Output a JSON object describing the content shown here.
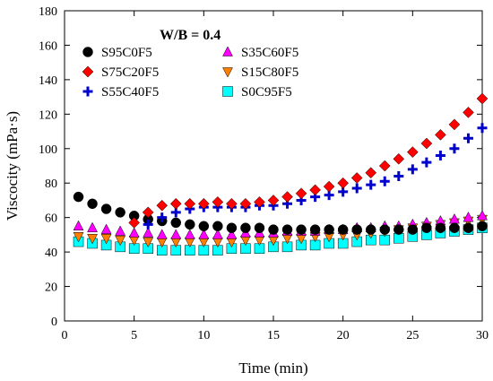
{
  "chart_data": {
    "type": "scatter",
    "title": "",
    "annotation": "W/B = 0.4",
    "xlabel": "Time (min)",
    "ylabel": "Viscocity (mPa·s)",
    "xlim": [
      0,
      30
    ],
    "ylim": [
      0,
      180
    ],
    "xticks": [
      0,
      5,
      10,
      15,
      20,
      25,
      30
    ],
    "yticks": [
      0,
      20,
      40,
      60,
      80,
      100,
      120,
      140,
      160,
      180
    ],
    "grid": false,
    "legend_placement": "top-left",
    "x": [
      1,
      2,
      3,
      4,
      5,
      6,
      7,
      8,
      9,
      10,
      11,
      12,
      13,
      14,
      15,
      16,
      17,
      18,
      19,
      20,
      21,
      22,
      23,
      24,
      25,
      26,
      27,
      28,
      29,
      30
    ],
    "series": [
      {
        "name": "S95C0F5",
        "marker": "circle",
        "color": "#000000",
        "values": [
          72,
          68,
          65,
          63,
          61,
          59,
          58,
          57,
          56,
          55,
          55,
          54,
          54,
          54,
          53,
          53,
          53,
          53,
          53,
          53,
          53,
          53,
          53,
          53,
          53,
          54,
          54,
          54,
          54,
          55
        ]
      },
      {
        "name": "S75C20F5",
        "marker": "diamond",
        "color": "#ff0000",
        "values": [
          null,
          null,
          null,
          null,
          57,
          63,
          67,
          68,
          68,
          68,
          69,
          68,
          68,
          69,
          70,
          72,
          74,
          76,
          78,
          80,
          83,
          86,
          90,
          94,
          98,
          103,
          108,
          114,
          121,
          129
        ]
      },
      {
        "name": "S55C40F5",
        "marker": "plus",
        "color": "#0000cc",
        "values": [
          null,
          null,
          null,
          null,
          null,
          56,
          60,
          63,
          65,
          66,
          66,
          66,
          66,
          67,
          67,
          68,
          70,
          72,
          73,
          75,
          77,
          79,
          81,
          84,
          88,
          92,
          96,
          100,
          106,
          112
        ]
      },
      {
        "name": "S35C60F5",
        "marker": "triangle-up",
        "color": "#ff00ff",
        "values": [
          55,
          54,
          53,
          52,
          51,
          51,
          50,
          50,
          50,
          50,
          50,
          50,
          51,
          51,
          51,
          52,
          52,
          52,
          53,
          53,
          54,
          54,
          55,
          55,
          56,
          57,
          58,
          59,
          60,
          61
        ]
      },
      {
        "name": "S15C80F5",
        "marker": "triangle-down",
        "color": "#ff7f00",
        "values": [
          49,
          48,
          48,
          47,
          47,
          46,
          46,
          46,
          46,
          46,
          46,
          46,
          47,
          47,
          47,
          48,
          48,
          49,
          49,
          50,
          50,
          51,
          52,
          53,
          54,
          55,
          56,
          57,
          58,
          59
        ]
      },
      {
        "name": "S0C95F5",
        "marker": "square",
        "color": "#00ffff",
        "values": [
          46,
          45,
          44,
          43,
          42,
          42,
          41,
          41,
          41,
          41,
          41,
          42,
          42,
          42,
          43,
          43,
          44,
          44,
          45,
          45,
          46,
          47,
          47,
          48,
          49,
          50,
          51,
          52,
          53,
          54
        ]
      }
    ]
  }
}
